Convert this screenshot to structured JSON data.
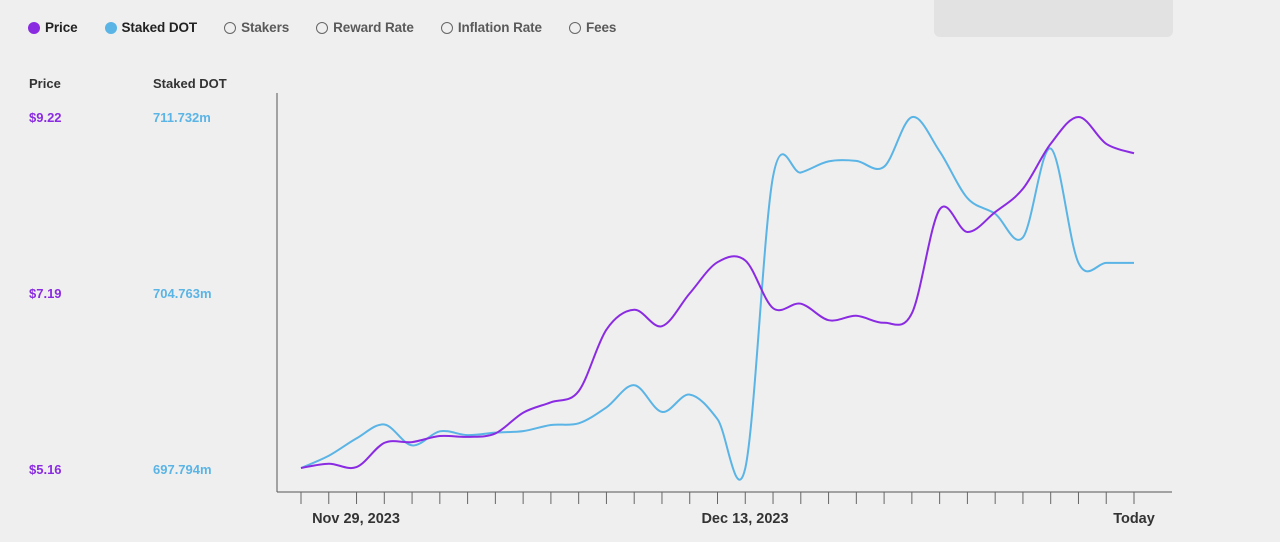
{
  "legend": [
    {
      "label": "Price",
      "color": "#8a2be2",
      "active": true
    },
    {
      "label": "Staked DOT",
      "color": "#5ab4e5",
      "active": true
    },
    {
      "label": "Stakers",
      "active": false
    },
    {
      "label": "Reward Rate",
      "active": false
    },
    {
      "label": "Inflation Rate",
      "active": false
    },
    {
      "label": "Fees",
      "active": false
    }
  ],
  "axes": {
    "price_header": "Price",
    "staked_header": "Staked DOT",
    "price_ticks": [
      "$9.22",
      "$7.19",
      "$5.16"
    ],
    "staked_ticks": [
      "711.732m",
      "704.763m",
      "697.794m"
    ]
  },
  "x_labels": [
    "Nov 29, 2023",
    "Dec 13, 2023",
    "Today"
  ],
  "chart_data": {
    "type": "line",
    "x_tick_count": 31,
    "series": [
      {
        "name": "Price",
        "color": "#8a2be2",
        "ylim": [
          5.16,
          9.22
        ],
        "values": [
          5.16,
          5.21,
          5.17,
          5.45,
          5.46,
          5.53,
          5.52,
          5.56,
          5.8,
          5.92,
          6.05,
          6.76,
          6.99,
          6.8,
          7.18,
          7.54,
          7.56,
          7.01,
          7.06,
          6.87,
          6.92,
          6.84,
          6.95,
          8.15,
          7.89,
          8.12,
          8.39,
          8.91,
          9.22,
          8.91,
          8.8
        ]
      },
      {
        "name": "Staked DOT",
        "color": "#5ab4e5",
        "ylim": [
          697.794,
          711.732
        ],
        "values": [
          697.79,
          698.28,
          698.97,
          699.52,
          698.69,
          699.25,
          699.1,
          699.2,
          699.26,
          699.5,
          699.57,
          700.2,
          701.08,
          700.02,
          700.71,
          699.73,
          697.79,
          709.36,
          709.53,
          709.97,
          709.99,
          709.76,
          711.73,
          710.37,
          708.51,
          707.89,
          706.95,
          710.48,
          705.94,
          705.94,
          705.94
        ]
      }
    ]
  }
}
